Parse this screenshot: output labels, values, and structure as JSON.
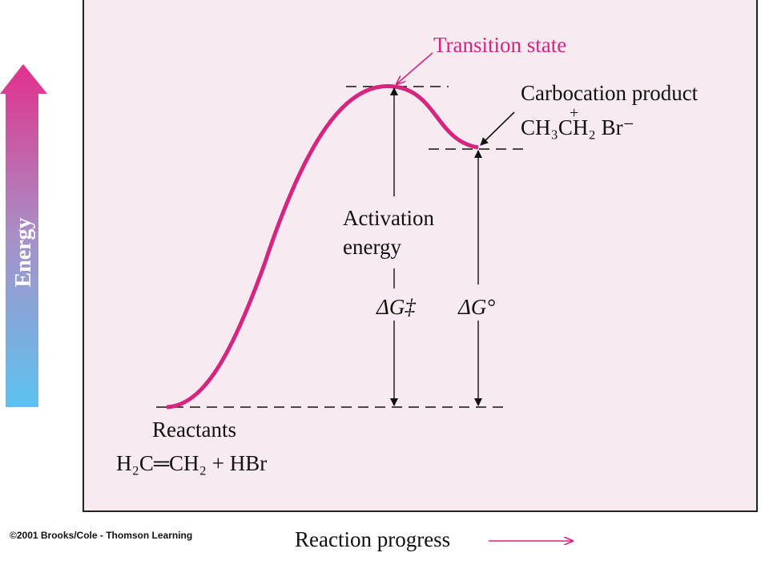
{
  "diagram": {
    "peak_label": "Transition state",
    "product_label": "Carbocation product",
    "product_charge": "+",
    "product_formula": "CH₃CH₂ Br⁻",
    "activation_label": [
      "Activation",
      "energy"
    ],
    "activation_symbol": "ΔG‡",
    "free_energy_symbol": "ΔG°",
    "reactants_label": "Reactants",
    "reactants_formula": "H₂C═CH₂ + HBr",
    "y_axis_label": "Energy",
    "x_axis_label": "Reaction progress",
    "credit": "©2001 Brooks/Cole - Thomson Learning"
  }
}
